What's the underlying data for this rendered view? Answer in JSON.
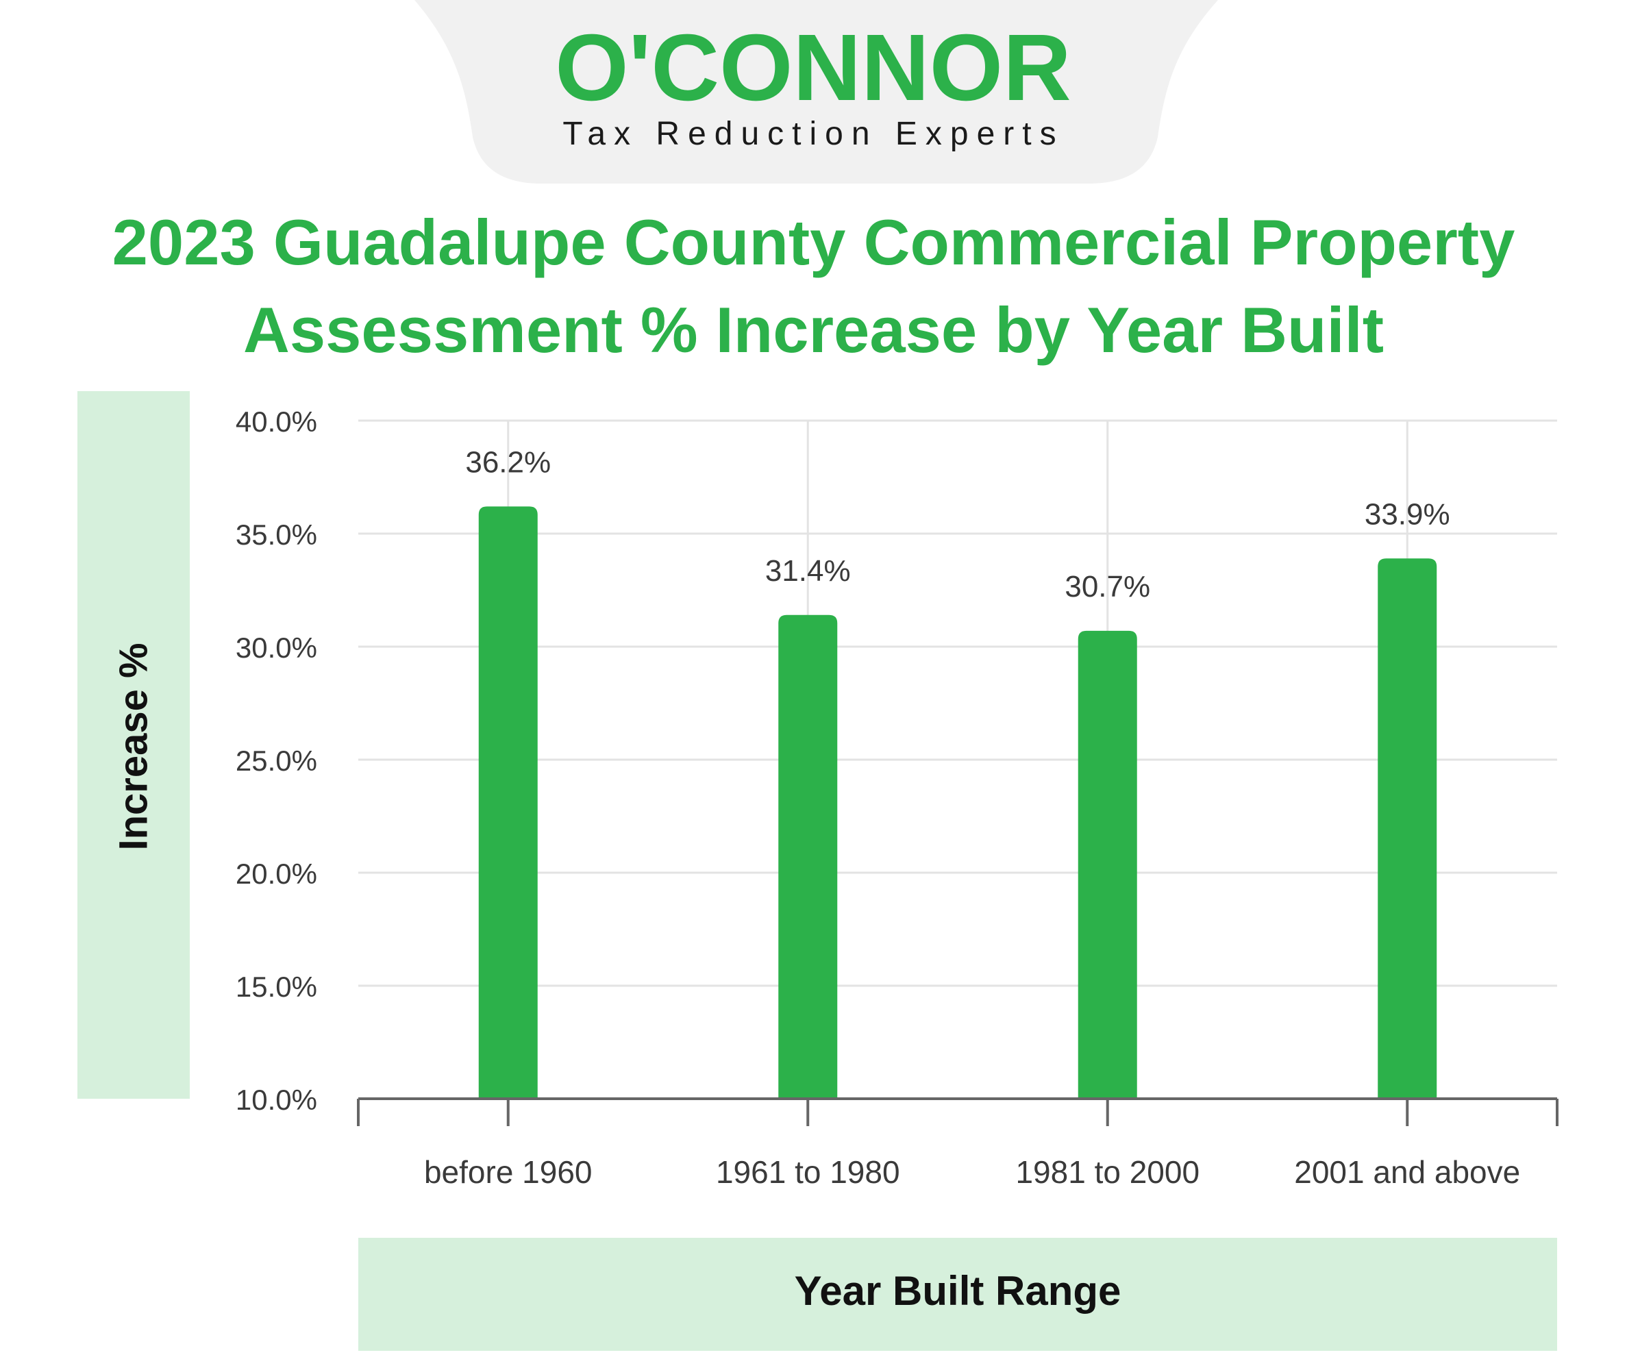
{
  "brand": {
    "logo_text": "O'CONNOR",
    "tagline": "Tax Reduction Experts",
    "accent": "#2cb14a",
    "tab_color": "#f1f1f1",
    "panel_color": "#d6f0dc"
  },
  "chart_data": {
    "type": "bar",
    "title_lines": [
      "2023 Guadalupe County Commercial Property",
      "Assessment % Increase by Year Built"
    ],
    "xlabel": "Year Built Range",
    "ylabel": "Increase %",
    "categories": [
      "before 1960",
      "1961 to 1980",
      "1981 to 2000",
      "2001 and above"
    ],
    "values": [
      36.2,
      31.4,
      30.7,
      33.9
    ],
    "value_labels": [
      "36.2%",
      "31.4%",
      "30.7%",
      "33.9%"
    ],
    "ylim": [
      10,
      40
    ],
    "yticks": [
      10,
      15,
      20,
      25,
      30,
      35,
      40
    ],
    "ytick_labels": [
      "10.0%",
      "15.0%",
      "20.0%",
      "25.0%",
      "30.0%",
      "35.0%",
      "40.0%"
    ],
    "grid": true,
    "bar_color": "#2cb14a"
  }
}
